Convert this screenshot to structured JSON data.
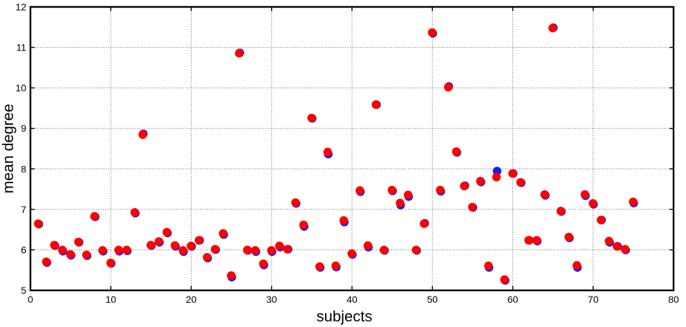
{
  "chart_data": {
    "type": "scatter",
    "title": "",
    "xlabel": "subjects",
    "ylabel": "mean degree",
    "xlim": [
      0,
      80
    ],
    "ylim": [
      5,
      12
    ],
    "xticks": [
      0,
      10,
      20,
      30,
      40,
      50,
      60,
      70,
      80
    ],
    "yticks": [
      5,
      6,
      7,
      8,
      9,
      10,
      11,
      12
    ],
    "grid": true,
    "x": [
      1,
      2,
      3,
      4,
      5,
      6,
      7,
      8,
      9,
      10,
      11,
      12,
      13,
      14,
      15,
      16,
      17,
      18,
      19,
      20,
      21,
      22,
      23,
      24,
      25,
      26,
      27,
      28,
      29,
      30,
      31,
      32,
      33,
      34,
      35,
      36,
      37,
      38,
      39,
      40,
      41,
      42,
      43,
      44,
      45,
      46,
      47,
      48,
      49,
      50,
      51,
      52,
      53,
      54,
      55,
      56,
      57,
      58,
      59,
      60,
      61,
      62,
      63,
      64,
      65,
      66,
      67,
      68,
      69,
      70,
      71,
      72,
      73,
      74,
      75
    ],
    "series": [
      {
        "color": "#1a1aff",
        "values": [
          6.65,
          5.7,
          6.12,
          5.98,
          5.88,
          6.2,
          5.87,
          6.83,
          5.98,
          5.68,
          5.98,
          5.99,
          6.92,
          8.88,
          6.12,
          6.2,
          6.43,
          6.1,
          5.97,
          6.1,
          6.25,
          5.81,
          6.02,
          6.39,
          5.34,
          10.88,
          6.0,
          5.97,
          5.64,
          5.97,
          6.08,
          6.03,
          7.16,
          6.59,
          9.26,
          5.58,
          8.38,
          5.59,
          6.7,
          5.9,
          7.45,
          6.08,
          9.6,
          6.0,
          7.47,
          7.12,
          7.33,
          6.0,
          6.67,
          11.36,
          7.46,
          10.05,
          8.42,
          7.6,
          7.06,
          7.69,
          5.58,
          7.96,
          5.26,
          7.9,
          7.67,
          6.25,
          6.23,
          7.36,
          11.5,
          6.96,
          6.31,
          5.58,
          7.35,
          7.14,
          6.75,
          6.2,
          6.1,
          6.01,
          7.17
        ]
      },
      {
        "color": "#ff0000",
        "values": [
          6.64,
          5.7,
          6.11,
          5.99,
          5.88,
          6.19,
          5.87,
          6.82,
          5.98,
          5.67,
          5.99,
          5.99,
          6.92,
          8.84,
          6.11,
          6.2,
          6.43,
          6.1,
          5.98,
          6.09,
          6.23,
          5.81,
          6.01,
          6.4,
          5.36,
          10.85,
          5.99,
          5.98,
          5.65,
          5.98,
          6.09,
          6.01,
          7.16,
          6.61,
          9.25,
          5.58,
          8.41,
          5.6,
          6.72,
          5.9,
          7.46,
          6.1,
          9.58,
          5.99,
          7.47,
          7.15,
          7.35,
          5.99,
          6.64,
          11.36,
          7.47,
          10.01,
          8.42,
          7.57,
          7.05,
          7.69,
          5.6,
          7.79,
          5.26,
          7.88,
          7.66,
          6.23,
          6.23,
          7.36,
          11.47,
          6.95,
          6.31,
          5.61,
          7.36,
          7.14,
          6.73,
          6.21,
          6.08,
          6.01,
          7.18
        ]
      }
    ]
  }
}
